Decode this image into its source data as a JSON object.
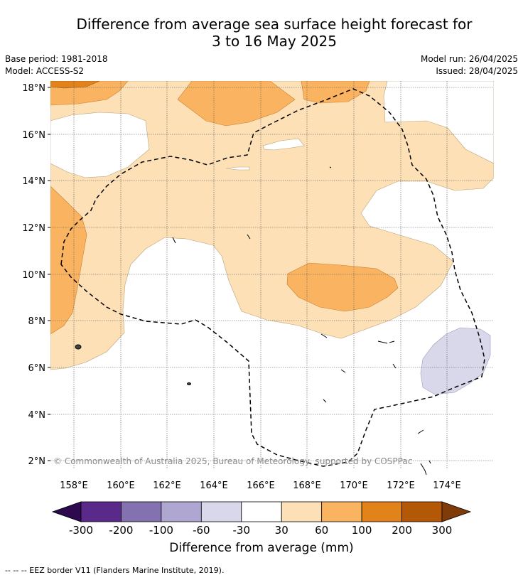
{
  "header": {
    "title_line1": "Difference from average sea surface height forecast for",
    "title_line2": "3 to 16 May 2025",
    "base_period": "Base period: 1981-2018",
    "model": "Model: ACCESS-S2",
    "model_run": "Model run: 26/04/2025",
    "issued": "Issued: 28/04/2025"
  },
  "map": {
    "lat_labels": [
      "18°N",
      "16°N",
      "14°N",
      "12°N",
      "10°N",
      "8°N",
      "6°N",
      "4°N",
      "2°N"
    ],
    "lon_labels": [
      "158°E",
      "160°E",
      "162°E",
      "164°E",
      "166°E",
      "168°E",
      "170°E",
      "172°E",
      "174°E"
    ],
    "copyright": "© Commonwealth of Australia 2025, Bureau of Meteorology, supported by COSPPac"
  },
  "colorbar": {
    "colors": [
      "#2d0a4e",
      "#5a2a8a",
      "#8471b0",
      "#b0a6d2",
      "#d8d8ea",
      "#ffffff",
      "#fde0b6",
      "#fab461",
      "#e2821a",
      "#b35806",
      "#7f3b08"
    ],
    "tick_labels": [
      "-300",
      "-200",
      "-100",
      "-60",
      "-30",
      "30",
      "60",
      "100",
      "200",
      "300"
    ],
    "label": "Difference from average (mm)"
  },
  "footer": {
    "legend": "--  --  -- EEZ border V11 (Flanders Marine Institute, 2019)."
  }
}
